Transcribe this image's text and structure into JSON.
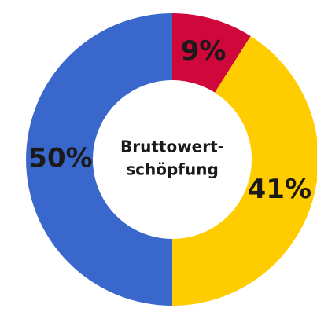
{
  "chart_data": {
    "type": "donut",
    "center_label": [
      "Bruttowert-",
      "schöpfung"
    ],
    "categories": [
      null,
      null,
      null
    ],
    "values": [
      9,
      41,
      50
    ],
    "value_labels": [
      "9%",
      "41%",
      "50%"
    ],
    "colors": [
      "#d0073a",
      "#ffcc00",
      "#3a67cc"
    ]
  }
}
